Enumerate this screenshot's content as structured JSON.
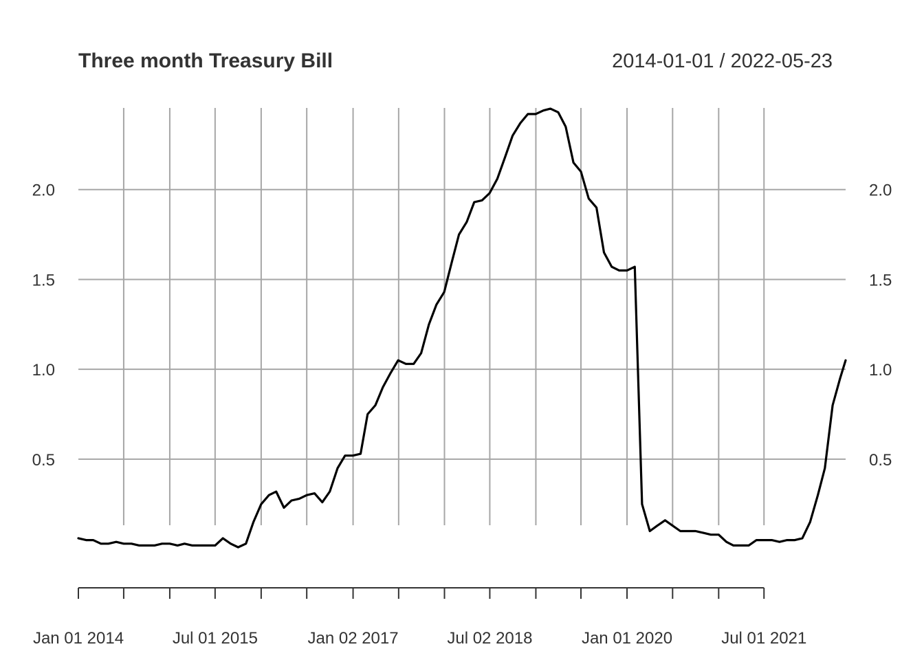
{
  "chart_data": {
    "type": "line",
    "title": "Three month Treasury Bill",
    "date_range_label": "2014-01-01 / 2022-05-23",
    "x_start": "2014-01-01",
    "x_end": "2022-05-23",
    "ylim": [
      -0.12,
      2.5
    ],
    "y_ticks": [
      0.5,
      1.0,
      1.5,
      2.0
    ],
    "y_tick_labels": [
      "0.5",
      "1.0",
      "1.5",
      "2.0"
    ],
    "x_tick_labels": [
      {
        "date": "2014-01-01",
        "label": "Jan 01 2014"
      },
      {
        "date": "2015-07-01",
        "label": "Jul 01 2015"
      },
      {
        "date": "2017-01-02",
        "label": "Jan 02 2017"
      },
      {
        "date": "2018-07-02",
        "label": "Jul 02 2018"
      },
      {
        "date": "2020-01-01",
        "label": "Jan 01 2020"
      },
      {
        "date": "2021-07-01",
        "label": "Jul 01 2021"
      }
    ],
    "x_grid_dates": [
      "2014-07-01",
      "2015-01-01",
      "2015-07-01",
      "2016-01-01",
      "2016-07-01",
      "2017-01-02",
      "2017-07-03",
      "2018-01-02",
      "2018-07-02",
      "2019-01-02",
      "2019-07-01",
      "2020-01-01",
      "2020-07-01",
      "2021-01-01",
      "2021-07-01"
    ],
    "x_minor_tick_dates": [
      "2014-01-01",
      "2014-07-01",
      "2015-01-01",
      "2015-07-01",
      "2016-01-01",
      "2016-07-01",
      "2017-01-02",
      "2017-07-03",
      "2018-01-02",
      "2018-07-02",
      "2019-01-02",
      "2019-07-01",
      "2020-01-01",
      "2020-07-01",
      "2021-01-01",
      "2021-07-01"
    ],
    "grid": true,
    "legend": "none",
    "series": [
      {
        "color": "#000000",
        "points": [
          [
            "2014-01-01",
            0.06
          ],
          [
            "2014-02-01",
            0.05
          ],
          [
            "2014-03-01",
            0.05
          ],
          [
            "2014-04-01",
            0.03
          ],
          [
            "2014-05-01",
            0.03
          ],
          [
            "2014-06-01",
            0.04
          ],
          [
            "2014-07-01",
            0.03
          ],
          [
            "2014-08-01",
            0.03
          ],
          [
            "2014-09-01",
            0.02
          ],
          [
            "2014-10-01",
            0.02
          ],
          [
            "2014-11-01",
            0.02
          ],
          [
            "2014-12-01",
            0.03
          ],
          [
            "2015-01-01",
            0.03
          ],
          [
            "2015-02-01",
            0.02
          ],
          [
            "2015-03-01",
            0.03
          ],
          [
            "2015-04-01",
            0.02
          ],
          [
            "2015-05-01",
            0.02
          ],
          [
            "2015-06-01",
            0.02
          ],
          [
            "2015-07-01",
            0.02
          ],
          [
            "2015-08-01",
            0.06
          ],
          [
            "2015-09-01",
            0.03
          ],
          [
            "2015-10-01",
            0.01
          ],
          [
            "2015-11-01",
            0.03
          ],
          [
            "2015-12-01",
            0.15
          ],
          [
            "2016-01-01",
            0.25
          ],
          [
            "2016-02-01",
            0.3
          ],
          [
            "2016-03-01",
            0.32
          ],
          [
            "2016-04-01",
            0.23
          ],
          [
            "2016-05-01",
            0.27
          ],
          [
            "2016-06-01",
            0.28
          ],
          [
            "2016-07-01",
            0.3
          ],
          [
            "2016-08-01",
            0.31
          ],
          [
            "2016-09-01",
            0.26
          ],
          [
            "2016-10-01",
            0.32
          ],
          [
            "2016-11-01",
            0.45
          ],
          [
            "2016-12-01",
            0.52
          ],
          [
            "2017-01-01",
            0.52
          ],
          [
            "2017-02-01",
            0.53
          ],
          [
            "2017-03-01",
            0.75
          ],
          [
            "2017-04-01",
            0.8
          ],
          [
            "2017-05-01",
            0.9
          ],
          [
            "2017-06-01",
            0.98
          ],
          [
            "2017-07-01",
            1.05
          ],
          [
            "2017-08-01",
            1.03
          ],
          [
            "2017-09-01",
            1.03
          ],
          [
            "2017-10-01",
            1.09
          ],
          [
            "2017-11-01",
            1.25
          ],
          [
            "2017-12-01",
            1.36
          ],
          [
            "2018-01-01",
            1.43
          ],
          [
            "2018-02-01",
            1.6
          ],
          [
            "2018-03-01",
            1.75
          ],
          [
            "2018-04-01",
            1.82
          ],
          [
            "2018-05-01",
            1.93
          ],
          [
            "2018-06-01",
            1.94
          ],
          [
            "2018-07-01",
            1.98
          ],
          [
            "2018-08-01",
            2.06
          ],
          [
            "2018-09-01",
            2.18
          ],
          [
            "2018-10-01",
            2.3
          ],
          [
            "2018-11-01",
            2.37
          ],
          [
            "2018-12-01",
            2.42
          ],
          [
            "2019-01-01",
            2.42
          ],
          [
            "2019-02-01",
            2.44
          ],
          [
            "2019-03-01",
            2.45
          ],
          [
            "2019-04-01",
            2.43
          ],
          [
            "2019-05-01",
            2.35
          ],
          [
            "2019-06-01",
            2.15
          ],
          [
            "2019-07-01",
            2.1
          ],
          [
            "2019-08-01",
            1.95
          ],
          [
            "2019-09-01",
            1.9
          ],
          [
            "2019-10-01",
            1.65
          ],
          [
            "2019-11-01",
            1.57
          ],
          [
            "2019-12-01",
            1.55
          ],
          [
            "2020-01-01",
            1.55
          ],
          [
            "2020-02-01",
            1.57
          ],
          [
            "2020-03-01",
            0.25
          ],
          [
            "2020-04-01",
            0.1
          ],
          [
            "2020-05-01",
            0.13
          ],
          [
            "2020-06-01",
            0.16
          ],
          [
            "2020-07-01",
            0.13
          ],
          [
            "2020-08-01",
            0.1
          ],
          [
            "2020-09-01",
            0.1
          ],
          [
            "2020-10-01",
            0.1
          ],
          [
            "2020-11-01",
            0.09
          ],
          [
            "2020-12-01",
            0.08
          ],
          [
            "2021-01-01",
            0.08
          ],
          [
            "2021-02-01",
            0.04
          ],
          [
            "2021-03-01",
            0.02
          ],
          [
            "2021-04-01",
            0.02
          ],
          [
            "2021-05-01",
            0.02
          ],
          [
            "2021-06-01",
            0.05
          ],
          [
            "2021-07-01",
            0.05
          ],
          [
            "2021-08-01",
            0.05
          ],
          [
            "2021-09-01",
            0.04
          ],
          [
            "2021-10-01",
            0.05
          ],
          [
            "2021-11-01",
            0.05
          ],
          [
            "2021-12-01",
            0.06
          ],
          [
            "2022-01-01",
            0.15
          ],
          [
            "2022-02-01",
            0.3
          ],
          [
            "2022-03-01",
            0.45
          ],
          [
            "2022-04-01",
            0.8
          ],
          [
            "2022-05-01",
            0.95
          ],
          [
            "2022-05-23",
            1.05
          ]
        ]
      }
    ]
  }
}
